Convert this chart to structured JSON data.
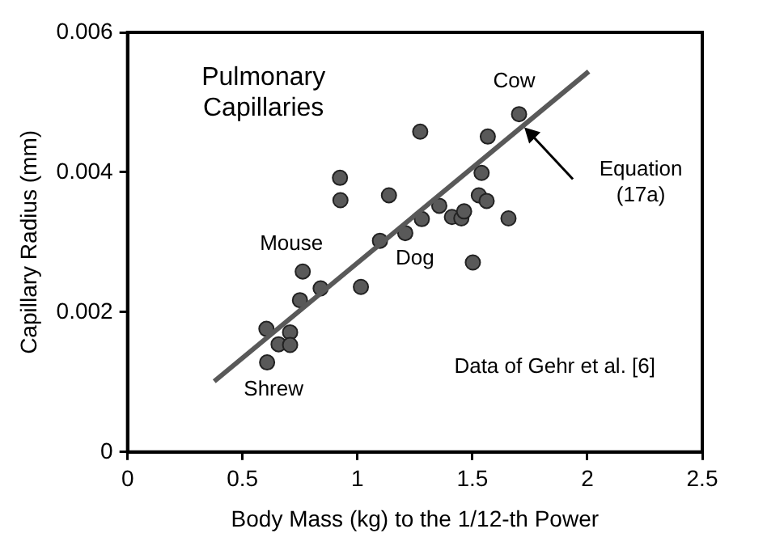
{
  "chart_data": {
    "type": "scatter",
    "xlabel": "Body Mass (kg) to the 1/12-th Power",
    "ylabel": "Capillary Radius (mm)",
    "xlim": [
      0,
      2.5
    ],
    "xticks": [
      0,
      0.5,
      1,
      1.5,
      2,
      2.5
    ],
    "ylim": [
      0,
      0.006
    ],
    "yticks": [
      0,
      0.002,
      0.004,
      0.006
    ],
    "grid": false,
    "legend": false,
    "series": [
      {
        "color": "#595959",
        "marker": "circle",
        "x": [
          0.604,
          0.607,
          0.657,
          0.707,
          0.707,
          0.75,
          0.762,
          0.84,
          0.924,
          0.926,
          1.015,
          1.098,
          1.137,
          1.208,
          1.273,
          1.28,
          1.356,
          1.411,
          1.452,
          1.464,
          1.502,
          1.54,
          1.528,
          1.562,
          1.567,
          1.657,
          1.703
        ],
        "values": [
          0.00176,
          0.00128,
          0.00154,
          0.00171,
          0.00153,
          0.00217,
          0.00258,
          0.00234,
          0.00392,
          0.0036,
          0.00236,
          0.00302,
          0.00367,
          0.00313,
          0.00458,
          0.00333,
          0.00352,
          0.00336,
          0.00334,
          0.00344,
          0.00271,
          0.00399,
          0.00367,
          0.00359,
          0.00451,
          0.00334,
          0.00483
        ]
      },
      {
        "type": "line",
        "marker": "none",
        "color": "#595959",
        "x": [
          0.377,
          2.006
        ],
        "values": [
          0.00101,
          0.00544
        ]
      }
    ],
    "annotations": [
      "Pulmonary Capillaries",
      "Data of Gehr et al. [6]",
      {
        "text": "Cow",
        "x": 1.703,
        "y": 0.00483
      },
      {
        "text": "Mouse",
        "x": 0.762,
        "y": 0.00258
      },
      {
        "text": "Dog",
        "x": 1.208,
        "y": 0.00313
      },
      {
        "text": "Shrew",
        "x": 0.607,
        "y": 0.00128
      },
      {
        "text": "Equation (17a)",
        "x": 1.726,
        "y": 0.00464
      }
    ]
  }
}
